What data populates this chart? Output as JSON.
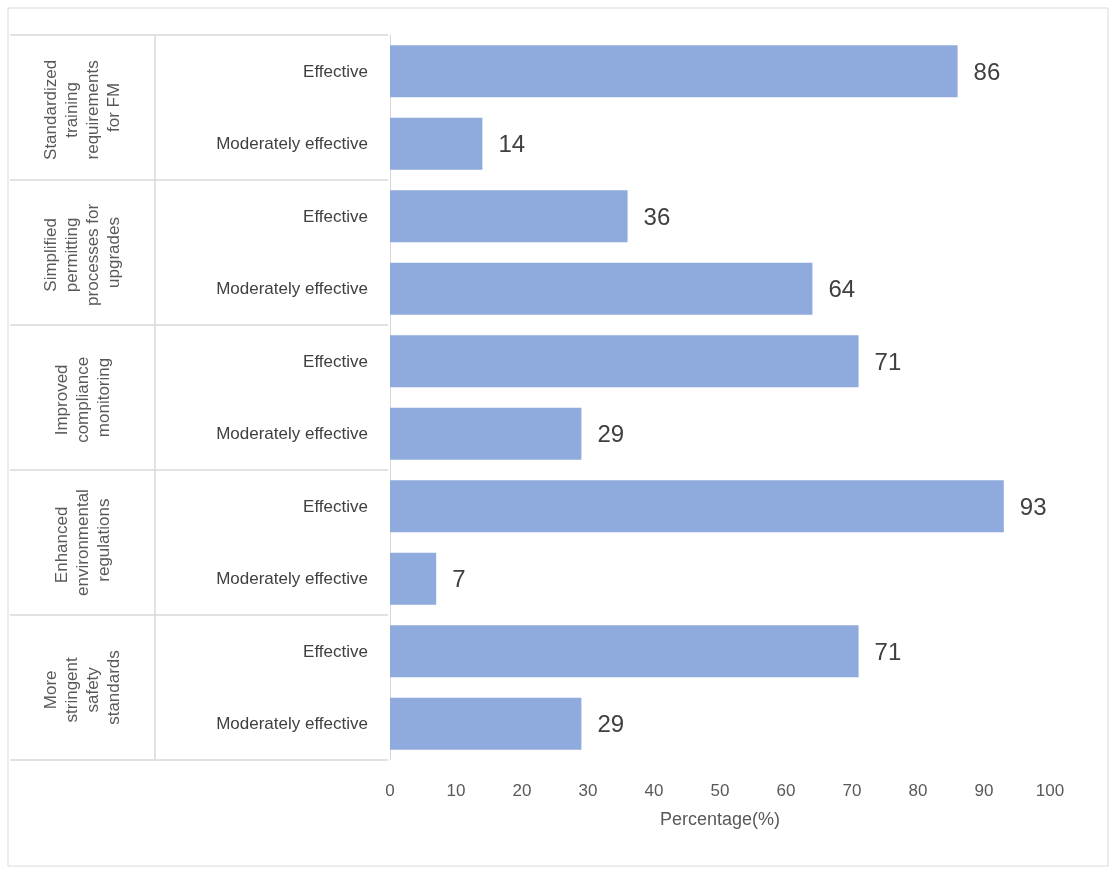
{
  "chart_data": {
    "type": "bar",
    "orientation": "horizontal",
    "xlabel": "Percentage(%)",
    "categories": [
      "Effective",
      "Moderately effective",
      "Effective",
      "Moderately effective",
      "Effective",
      "Moderately effective",
      "Effective",
      "Moderately effective",
      "Effective",
      "Moderately effective"
    ],
    "values": [
      86,
      14,
      36,
      64,
      71,
      29,
      93,
      7,
      71,
      29
    ],
    "color": "#8faadc",
    "data_labels": true,
    "grid": false,
    "xlim": [
      0,
      100
    ],
    "xticks": [
      0,
      10,
      20,
      30,
      40,
      50,
      60,
      70,
      80,
      90,
      100
    ],
    "annotations": [
      "Standardized training requirements for FM",
      "Simplified permitting processes for upgrades",
      "Improved compliance monitoring",
      "Enhanced environmental regulations",
      "More stringent safety standards"
    ]
  }
}
